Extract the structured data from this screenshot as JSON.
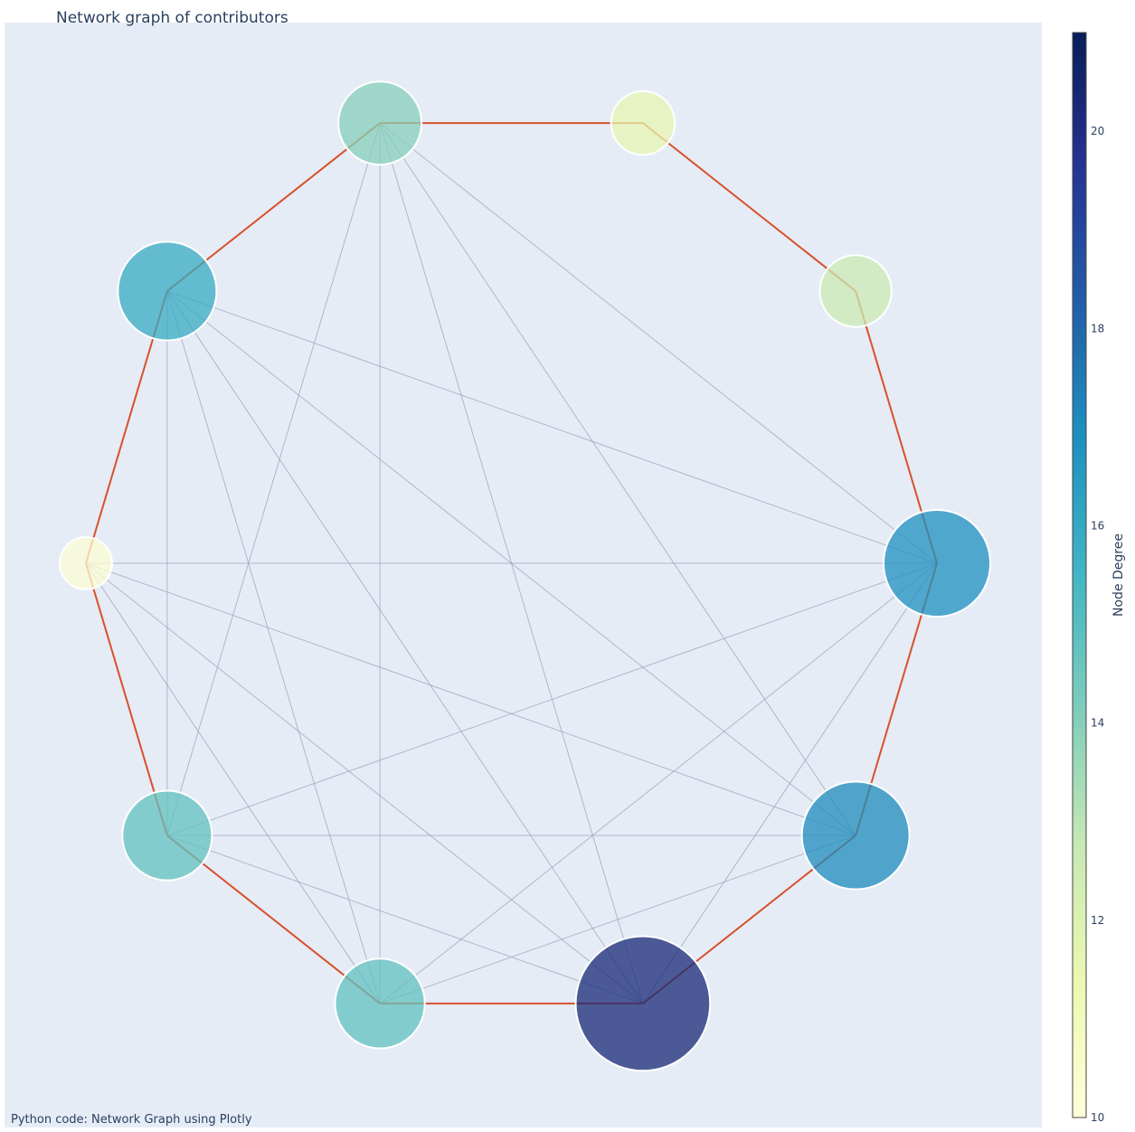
{
  "chart_data": {
    "type": "network",
    "title": "Network graph of contributors",
    "annotation": "Python code: Network Graph using Plotly",
    "colorbar": {
      "title": "Node Degree",
      "range": [
        10,
        21
      ],
      "ticks": [
        "10",
        "12",
        "14",
        "16",
        "18",
        "20"
      ],
      "tick_values": [
        10,
        12,
        14,
        16,
        18,
        20
      ],
      "colorscale": [
        "#ffffd9",
        "#edf8b1",
        "#c7e9b4",
        "#7fcdbb",
        "#41b6c4",
        "#1d91c0",
        "#225ea8",
        "#253494",
        "#081d58"
      ]
    },
    "colors": {
      "plot_background": "#e5ecf6",
      "cycle_edge": "#d9502b",
      "other_edge": "#9a9fb5",
      "node_outline": "#ffffff"
    },
    "nodes": [
      {
        "id": 0,
        "x": 1.0,
        "y": 0.0,
        "degree": 16.9
      },
      {
        "id": 1,
        "x": 0.809,
        "y": 0.588,
        "degree": 12.6
      },
      {
        "id": 2,
        "x": 0.309,
        "y": 0.951,
        "degree": 11.6
      },
      {
        "id": 3,
        "x": -0.309,
        "y": 0.951,
        "degree": 14.0
      },
      {
        "id": 4,
        "x": -0.809,
        "y": 0.588,
        "degree": 15.9
      },
      {
        "id": 5,
        "x": -1.0,
        "y": 0.0,
        "degree": 10.2
      },
      {
        "id": 6,
        "x": -0.809,
        "y": -0.588,
        "degree": 14.8
      },
      {
        "id": 7,
        "x": -0.309,
        "y": -0.951,
        "degree": 14.8
      },
      {
        "id": 8,
        "x": 0.309,
        "y": -0.951,
        "degree": 20.3
      },
      {
        "id": 9,
        "x": 0.809,
        "y": -0.588,
        "degree": 17.0
      }
    ],
    "cycle_edges": [
      [
        0,
        1
      ],
      [
        1,
        2
      ],
      [
        2,
        3
      ],
      [
        3,
        4
      ],
      [
        4,
        5
      ],
      [
        5,
        6
      ],
      [
        6,
        7
      ],
      [
        7,
        8
      ],
      [
        8,
        9
      ],
      [
        9,
        0
      ]
    ],
    "other_edges": [
      [
        3,
        7
      ],
      [
        3,
        6
      ],
      [
        3,
        8
      ],
      [
        3,
        9
      ],
      [
        3,
        0
      ],
      [
        4,
        0
      ],
      [
        4,
        6
      ],
      [
        4,
        7
      ],
      [
        4,
        8
      ],
      [
        4,
        9
      ],
      [
        5,
        4
      ],
      [
        5,
        0
      ],
      [
        5,
        7
      ],
      [
        5,
        8
      ],
      [
        5,
        9
      ],
      [
        6,
        0
      ],
      [
        6,
        8
      ],
      [
        6,
        9
      ],
      [
        7,
        0
      ],
      [
        7,
        9
      ],
      [
        8,
        0
      ],
      [
        8,
        9
      ]
    ],
    "axes": {
      "x_range": [
        -1.1,
        1.3
      ],
      "y_range": [
        -1.2,
        1.15
      ],
      "grid": false,
      "show_ticks": false
    }
  }
}
